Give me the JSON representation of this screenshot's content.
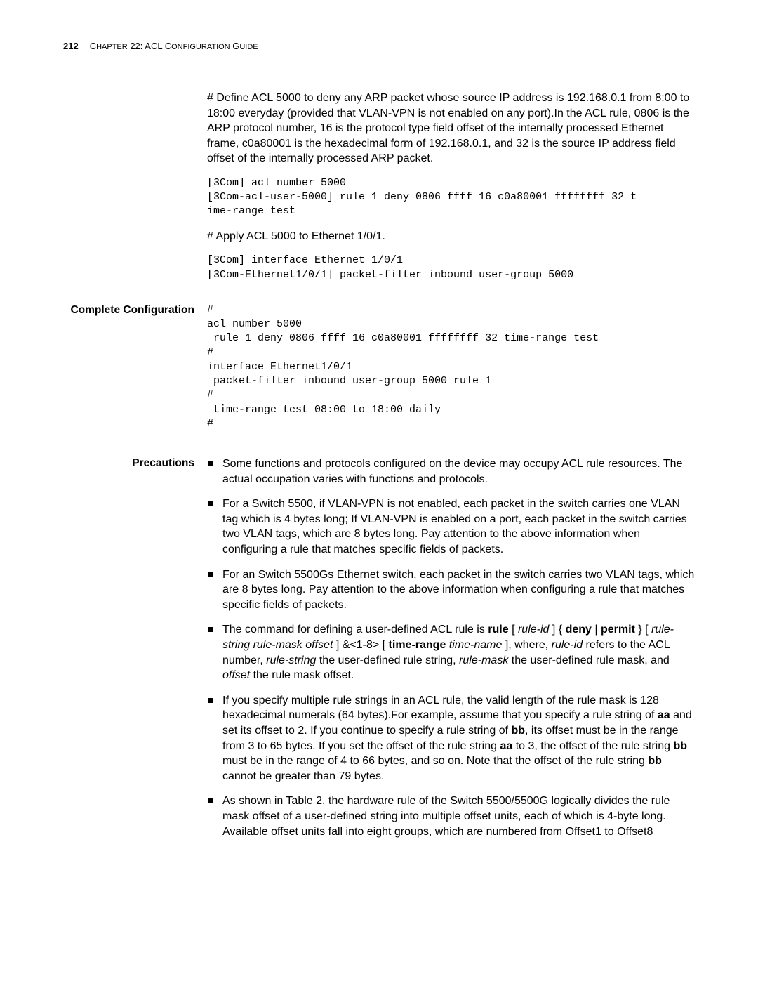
{
  "header": {
    "page_number": "212",
    "chapter_prefix": "C",
    "chapter_text_1": "HAPTER",
    "chapter_num": " 22: ACL C",
    "chapter_text_2": "ONFIGURATION",
    "chapter_text_3": " G",
    "chapter_text_4": "UIDE"
  },
  "intro": {
    "para1": "# Define ACL 5000 to deny any ARP packet whose source IP address is 192.168.0.1 from 8:00 to 18:00 everyday (provided that VLAN-VPN is not enabled on any port).In the ACL rule, 0806 is the ARP protocol number, 16 is the protocol type field offset of the internally processed Ethernet frame, c0a80001 is the hexadecimal form of 192.168.0.1, and 32 is the source IP address field offset of the internally processed ARP packet.",
    "code1": "[3Com] acl number 5000\n[3Com-acl-user-5000] rule 1 deny 0806 ffff 16 c0a80001 ffffffff 32 t\nime-range test",
    "para2": "# Apply ACL 5000 to Ethernet 1/0/1.",
    "code2": "[3Com] interface Ethernet 1/0/1\n[3Com-Ethernet1/0/1] packet-filter inbound user-group 5000"
  },
  "complete_config": {
    "label": "Complete Configuration",
    "code": "#\nacl number 5000\n rule 1 deny 0806 ffff 16 c0a80001 ffffffff 32 time-range test\n#\ninterface Ethernet1/0/1\n packet-filter inbound user-group 5000 rule 1\n#\n time-range test 08:00 to 18:00 daily\n#"
  },
  "precautions": {
    "label": "Precautions",
    "items": {
      "b1": "Some functions and protocols configured on the device may occupy ACL rule resources. The actual occupation varies with functions and protocols.",
      "b2": "For a Switch 5500, if VLAN-VPN is not enabled, each packet in the switch carries one VLAN tag which is 4 bytes long; If VLAN-VPN is enabled on a port, each packet in the switch carries two VLAN tags, which are 8 bytes long. Pay attention to the above information when configuring a rule that matches specific fields of packets.",
      "b3": "For an Switch 5500Gs Ethernet switch, each packet in the switch carries two VLAN tags, which are 8 bytes long. Pay attention to the above information when configuring a rule that matches specific fields of packets.",
      "b4_pre": "The command for defining a user-defined ACL rule is ",
      "b4_rule": "rule",
      "b4_a": " [ ",
      "b4_ruleid": "rule-id",
      "b4_b": " ] { ",
      "b4_deny": "deny",
      "b4_c": " | ",
      "b4_permit": "permit",
      "b4_d": " } [ ",
      "b4_rulestring": "rule-string rule-mask offset",
      "b4_e": " ] &<1-8> [ ",
      "b4_timerange": "time-range",
      "b4_f": " ",
      "b4_timename": "time-name",
      "b4_g": " ], where, ",
      "b4_ruleid2": "rule-id",
      "b4_h": " refers to the ACL number, ",
      "b4_rulestring2": "rule-string",
      "b4_i": " the user-defined rule string, ",
      "b4_rulemask": "rule-mask",
      "b4_j": " the user-defined rule mask, and ",
      "b4_offset": "offset",
      "b4_k": " the rule mask offset.",
      "b5_a": "If you specify multiple rule strings in an ACL rule, the valid length of the rule mask is 128 hexadecimal numerals (64 bytes).For example, assume that you specify a rule string of ",
      "b5_aa": "aa",
      "b5_b": " and set its offset to 2. If you continue to specify a rule string of ",
      "b5_bb": "bb",
      "b5_c": ", its offset must be in the range from 3 to 65 bytes. If you set the offset of the rule string ",
      "b5_aa2": "aa",
      "b5_d": " to 3, the offset of the rule string ",
      "b5_bb2": "bb",
      "b5_e": " must be in the range of 4 to 66 bytes, and so on. Note that the offset of the rule string ",
      "b5_bb3": "bb",
      "b5_f": " cannot be greater than 79 bytes.",
      "b6": "As shown in Table 2, the hardware rule of the Switch 5500/5500G logically divides the rule mask offset of a user-defined string into multiple offset units, each of which is 4-byte long. Available offset units fall into eight groups, which are numbered from Offset1 to Offset8"
    }
  }
}
